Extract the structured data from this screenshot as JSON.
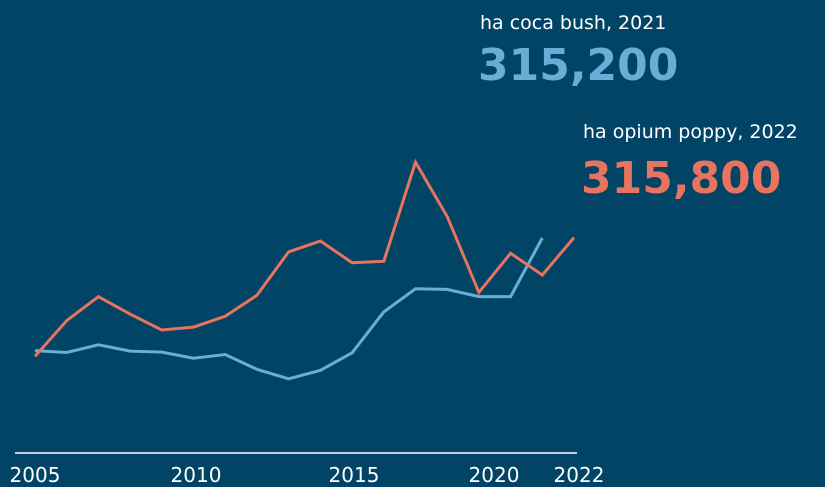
{
  "chart_data": {
    "type": "line",
    "x": [
      2005,
      2006,
      2007,
      2008,
      2009,
      2010,
      2011,
      2012,
      2013,
      2014,
      2015,
      2016,
      2017,
      2018,
      2019,
      2020,
      2021,
      2022
    ],
    "xlim": [
      2005,
      2022
    ],
    "ylim": [
      0,
      600000
    ],
    "grid": false,
    "series": [
      {
        "key": "coca",
        "color": "#6aaed6",
        "values": [
          159600,
          156900,
          167600,
          158800,
          157500,
          149100,
          154200,
          133700,
          120600,
          132300,
          156500,
          213000,
          245000,
          244200,
          234200,
          234200,
          315200,
          null
        ]
      },
      {
        "key": "opium",
        "color": "#e8735e",
        "values": [
          151500,
          201000,
          234000,
          210000,
          188000,
          192000,
          207000,
          236000,
          296000,
          311000,
          281000,
          283000,
          420000,
          345000,
          240000,
          294000,
          264000,
          315800
        ]
      }
    ],
    "x_ticks": [
      "2005",
      "2010",
      "2015",
      "2020",
      "2022"
    ],
    "annotations": [
      {
        "series": "coca",
        "label": "ha coca bush, 2021",
        "value": "315,200",
        "color": "#6aaed6"
      },
      {
        "series": "opium",
        "label": "ha opium poppy, 2022",
        "value": "315,800",
        "color": "#e8735e"
      }
    ]
  }
}
